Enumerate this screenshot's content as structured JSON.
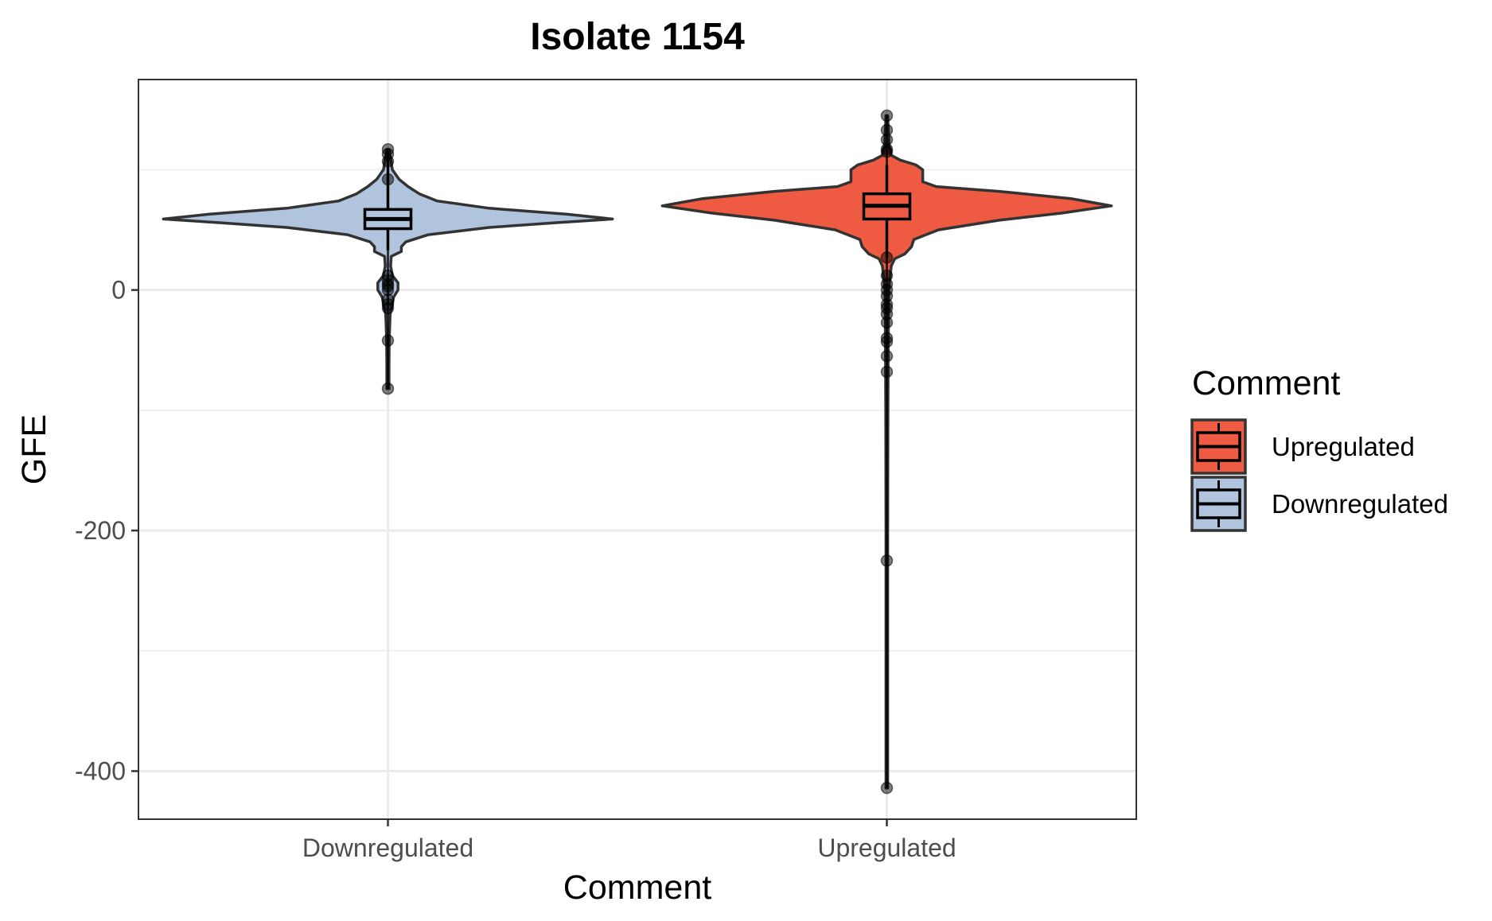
{
  "chart_data": {
    "type": "violin",
    "title": "Isolate 1154",
    "xlabel": "Comment",
    "ylabel": "GFE",
    "ylim": [
      -440,
      175
    ],
    "y_ticks": [
      0,
      -200,
      -400
    ],
    "grid": true,
    "legend_position": "right",
    "categories": [
      "Downregulated",
      "Upregulated"
    ],
    "legend": {
      "title": "Comment",
      "items": [
        {
          "label": "Upregulated",
          "color": "#EE5A42"
        },
        {
          "label": "Downregulated",
          "color": "#B0C4DE"
        }
      ]
    },
    "series": [
      {
        "category": "Downregulated",
        "color": "#B0C4DE",
        "box": {
          "q1": 51,
          "median": 59,
          "q3": 67,
          "whisker_low": 33,
          "whisker_high": 117
        },
        "violin_profile": [
          [
            -82,
            0.005
          ],
          [
            -60,
            0.005
          ],
          [
            -40,
            0.006
          ],
          [
            -20,
            0.01
          ],
          [
            -12,
            0.02
          ],
          [
            -6,
            0.025
          ],
          [
            0,
            0.045
          ],
          [
            6,
            0.045
          ],
          [
            12,
            0.02
          ],
          [
            20,
            0.012
          ],
          [
            28,
            0.015
          ],
          [
            32,
            0.06
          ],
          [
            36,
            0.06
          ],
          [
            40,
            0.08
          ],
          [
            46,
            0.18
          ],
          [
            52,
            0.45
          ],
          [
            56,
            0.75
          ],
          [
            59,
            1.0
          ],
          [
            63,
            0.8
          ],
          [
            68,
            0.45
          ],
          [
            74,
            0.22
          ],
          [
            80,
            0.14
          ],
          [
            86,
            0.09
          ],
          [
            92,
            0.05
          ],
          [
            100,
            0.02
          ],
          [
            117,
            0.005
          ]
        ],
        "outliers": [
          117,
          113,
          107,
          92,
          12,
          8,
          5,
          3,
          0,
          -8,
          -12,
          -15,
          -42,
          -82
        ]
      },
      {
        "category": "Upregulated",
        "color": "#EE5A42",
        "box": {
          "q1": 59,
          "median": 70,
          "q3": 80,
          "whisker_low": 27,
          "whisker_high": 104
        },
        "violin_profile": [
          [
            -414,
            0.004
          ],
          [
            -300,
            0.004
          ],
          [
            -200,
            0.004
          ],
          [
            -100,
            0.005
          ],
          [
            -50,
            0.006
          ],
          [
            0,
            0.008
          ],
          [
            20,
            0.02
          ],
          [
            26,
            0.035
          ],
          [
            30,
            0.08
          ],
          [
            36,
            0.11
          ],
          [
            42,
            0.12
          ],
          [
            50,
            0.23
          ],
          [
            58,
            0.5
          ],
          [
            64,
            0.78
          ],
          [
            70,
            1.0
          ],
          [
            76,
            0.82
          ],
          [
            82,
            0.5
          ],
          [
            86,
            0.22
          ],
          [
            90,
            0.16
          ],
          [
            96,
            0.16
          ],
          [
            100,
            0.16
          ],
          [
            104,
            0.13
          ],
          [
            108,
            0.06
          ],
          [
            112,
            0.02
          ],
          [
            120,
            0.01
          ],
          [
            145,
            0.004
          ]
        ],
        "outliers": [
          145,
          133,
          125,
          117,
          115,
          27,
          12,
          5,
          0,
          -5,
          -12,
          -15,
          -20,
          -27,
          -40,
          -43,
          -55,
          -68,
          -225,
          -414
        ]
      }
    ]
  }
}
